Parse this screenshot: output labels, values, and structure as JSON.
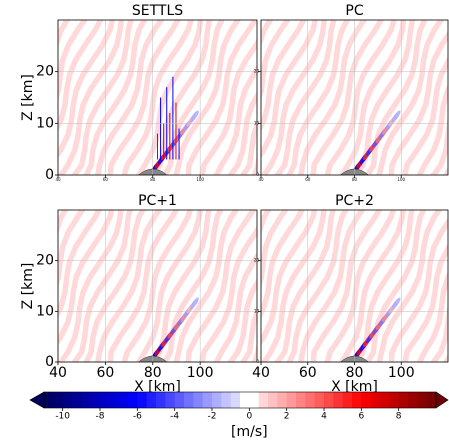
{
  "chart_data": [
    {
      "type": "contour",
      "title": "SETTLS",
      "ylabel": "Z [km]",
      "xlim": [
        40,
        124
      ],
      "ylim": [
        0,
        30
      ],
      "xticks": [
        40,
        60,
        80,
        100
      ],
      "yticks": [
        0,
        10,
        20
      ],
      "xtick_size": "small",
      "ytick_size": "large",
      "grid": true
    },
    {
      "type": "contour",
      "title": "PC",
      "xlim": [
        40,
        120
      ],
      "ylim": [
        0,
        30
      ],
      "xticks": [
        40,
        60,
        80,
        100
      ],
      "yticks": [
        0,
        10,
        20
      ],
      "xtick_size": "small",
      "ytick_size": "small",
      "grid": true
    },
    {
      "type": "contour",
      "title": "PC+1",
      "xlabel": "X [km]",
      "ylabel": "Z [km]",
      "xlim": [
        40,
        124
      ],
      "ylim": [
        0,
        30
      ],
      "xticks": [
        40,
        60,
        80,
        100
      ],
      "yticks": [
        0,
        10,
        20
      ],
      "xtick_size": "large",
      "ytick_size": "large",
      "grid": true
    },
    {
      "type": "contour",
      "title": "PC+2",
      "xlabel": "X [km]",
      "xlim": [
        40,
        120
      ],
      "ylim": [
        0,
        30
      ],
      "xticks": [
        40,
        60,
        80,
        100
      ],
      "yticks": [
        0,
        10,
        20
      ],
      "xtick_size": "large",
      "ytick_size": "small",
      "grid": true
    }
  ],
  "colorbar": {
    "label": "[m/s]",
    "lim": [
      -11,
      10
    ],
    "ticks": [
      -10,
      -8,
      -6,
      -4,
      -2,
      0,
      2,
      4,
      6,
      8
    ]
  }
}
